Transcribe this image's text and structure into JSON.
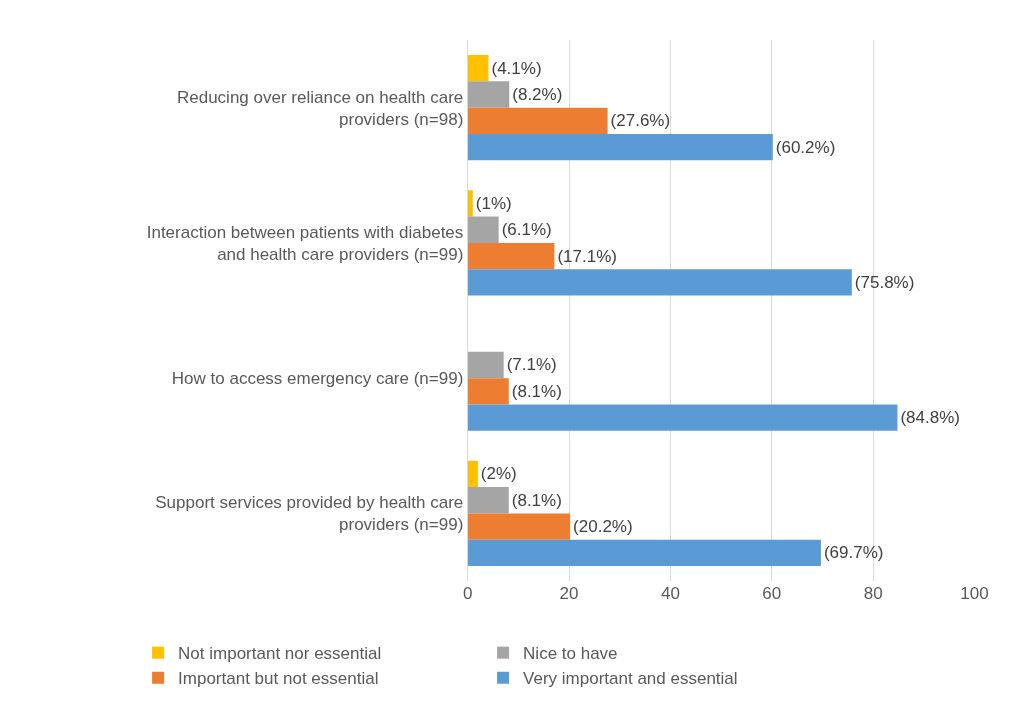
{
  "chart_data": {
    "type": "bar",
    "orientation": "horizontal",
    "categories": [
      "Reducing over reliance on health care providers (n=98)",
      "Interaction between patients with diabetes and health care providers (n=99)",
      "How to access emergency care (n=99)",
      "Support services provided by health care providers (n=99)"
    ],
    "series": [
      {
        "name": "Not important nor essential",
        "color": "#ffc000",
        "values": [
          4.1,
          1,
          0,
          2
        ],
        "value_labels": [
          "(4.1%)",
          "(1%)",
          null,
          "(2%)"
        ]
      },
      {
        "name": "Nice to have",
        "color": "#a5a5a5",
        "values": [
          8.2,
          6.1,
          7.1,
          8.1
        ],
        "value_labels": [
          "(8.2%)",
          "(6.1%)",
          "(7.1%)",
          "(8.1%)"
        ]
      },
      {
        "name": "Important but not essential",
        "color": "#ed7d31",
        "values": [
          27.6,
          17.1,
          8.1,
          20.2
        ],
        "value_labels": [
          "(27.6%)",
          "(17.1%)",
          "(8.1%)",
          "(20.2%)"
        ]
      },
      {
        "name": "Very important and essential",
        "color": "#5b9bd5",
        "values": [
          60.2,
          75.8,
          84.8,
          69.7
        ],
        "value_labels": [
          "(60.2%)",
          "(75.8%)",
          "(84.8%)",
          "(69.7%)"
        ]
      }
    ],
    "xlim": [
      0,
      100
    ],
    "xticks": [
      0,
      20,
      40,
      60,
      80,
      100
    ],
    "grid": "x",
    "legend": "bottom"
  }
}
